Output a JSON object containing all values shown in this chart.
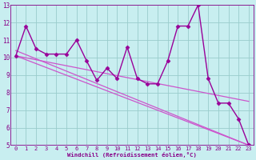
{
  "x_data": [
    0,
    1,
    2,
    3,
    4,
    5,
    6,
    7,
    8,
    9,
    10,
    11,
    12,
    13,
    14,
    15,
    16,
    17,
    18,
    19,
    20,
    21,
    22,
    23
  ],
  "y_main": [
    10.1,
    11.8,
    10.5,
    10.2,
    10.2,
    10.2,
    11.0,
    9.8,
    8.7,
    9.4,
    8.8,
    10.6,
    8.8,
    8.5,
    8.5,
    9.8,
    11.8,
    11.8,
    13.0,
    8.8,
    7.4,
    7.4,
    6.5,
    5.0
  ],
  "trend1_start": 10.1,
  "trend1_end": 5.0,
  "trend2_start": 10.4,
  "trend2_end": 5.0,
  "trend3_start": 10.1,
  "trend3_end": 7.5,
  "color_main": "#990099",
  "color_trend": "#cc55cc",
  "bg_color": "#c8eef0",
  "grid_color": "#99cccc",
  "xlabel": "Windchill (Refroidissement éolien,°C)",
  "xlim": [
    -0.5,
    23.5
  ],
  "ylim": [
    5,
    13
  ],
  "yticks": [
    5,
    6,
    7,
    8,
    9,
    10,
    11,
    12,
    13
  ],
  "xticks": [
    0,
    1,
    2,
    3,
    4,
    5,
    6,
    7,
    8,
    9,
    10,
    11,
    12,
    13,
    14,
    15,
    16,
    17,
    18,
    19,
    20,
    21,
    22,
    23
  ],
  "label_color": "#880088",
  "marker": "D",
  "markersize": 2.5,
  "linewidth": 1.0,
  "trend_linewidth": 0.9,
  "xlabel_fontsize": 5.2,
  "tick_fontsize": 5.0
}
